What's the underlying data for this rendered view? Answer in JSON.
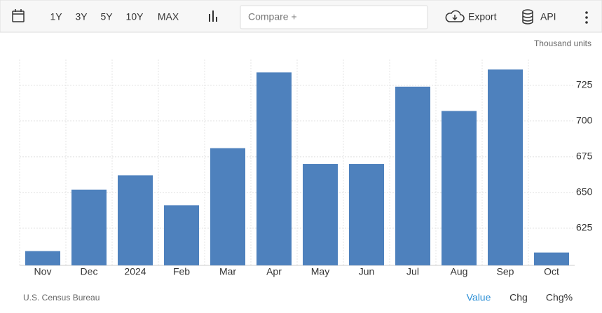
{
  "toolbar": {
    "ranges": [
      "1Y",
      "3Y",
      "5Y",
      "10Y",
      "MAX"
    ],
    "compare": "Compare +",
    "export": "Export",
    "api": "API"
  },
  "chart_data": {
    "type": "bar",
    "unit": "Thousand units",
    "categories": [
      "Nov",
      "Dec",
      "2024",
      "Feb",
      "Mar",
      "Apr",
      "May",
      "Jun",
      "Jul",
      "Aug",
      "Sep",
      "Oct"
    ],
    "values": [
      609,
      652,
      662,
      641,
      681,
      734,
      670,
      670,
      724,
      707,
      736,
      608
    ],
    "color": "#4e81bd",
    "ylim": [
      599,
      743
    ],
    "yticks": [
      625,
      650,
      675,
      700,
      725
    ],
    "grid": true,
    "source": "U.S. Census Bureau"
  },
  "tabs": [
    "Value",
    "Chg",
    "Chg%"
  ]
}
